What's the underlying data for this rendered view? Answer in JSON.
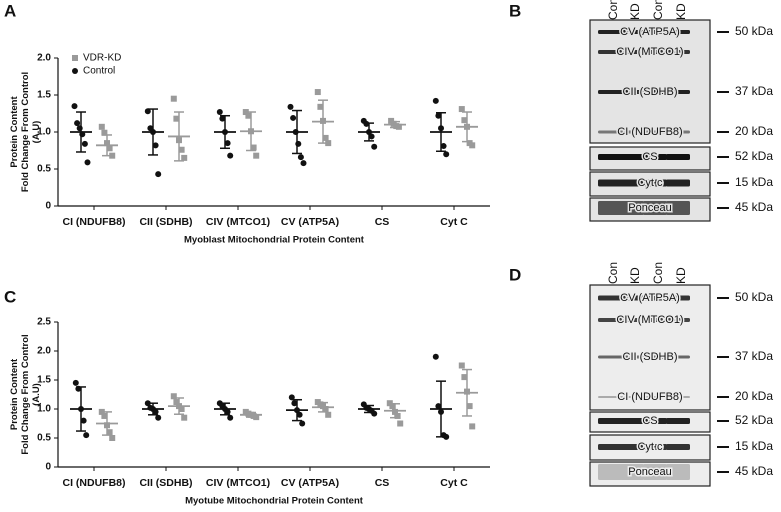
{
  "chart_data": [
    {
      "type": "dot_plot",
      "panel_label": "A",
      "ylabel": [
        "Protein Content",
        "Fold Change From Control",
        "(A.U)"
      ],
      "xlabel": "Myoblast Mitochondrial Protein Content",
      "categories": [
        "CI (NDUFB8)",
        "CII (SDHB)",
        "CIV (MTCO1)",
        "CV (ATP5A)",
        "CS",
        "Cyt C"
      ],
      "ylim": [
        0,
        2
      ],
      "yticks": [
        0,
        0.5,
        {
          "value": 1,
          "label": "1.0"
        },
        1.5,
        {
          "value": 2,
          "label": "2.0"
        }
      ],
      "legend": "top-left",
      "series": [
        {
          "name": "Control",
          "color": "#111111",
          "marker": "circle",
          "values": [
            [
              1.35,
              1.12,
              1.05,
              0.97,
              0.84,
              0.59
            ],
            [
              1.28,
              1.05,
              1.0,
              0.82,
              0.43
            ],
            [
              1.27,
              1.18,
              1.0,
              0.85,
              0.68
            ],
            [
              1.34,
              1.19,
              1.0,
              0.84,
              0.66,
              0.58
            ],
            [
              1.15,
              1.11,
              1.0,
              0.94,
              0.8
            ],
            [
              1.42,
              1.22,
              1.05,
              0.81,
              0.7
            ]
          ],
          "mean": [
            1.0,
            1.0,
            1.0,
            1.0,
            1.0,
            1.0
          ],
          "sd": [
            0.27,
            0.31,
            0.22,
            0.29,
            0.12,
            0.26
          ]
        },
        {
          "name": "VDR-KD",
          "color": "#9a9a9a",
          "marker": "square",
          "values": [
            [
              1.07,
              0.99,
              0.85,
              0.78,
              0.68
            ],
            [
              1.45,
              1.18,
              0.89,
              0.76,
              0.65
            ],
            [
              1.27,
              1.22,
              1.01,
              0.79,
              0.68
            ],
            [
              1.54,
              1.34,
              1.15,
              0.92,
              0.85
            ],
            [
              1.15,
              1.11,
              1.08,
              1.07
            ],
            [
              1.31,
              1.16,
              1.07,
              0.85,
              0.82
            ]
          ],
          "mean": [
            0.82,
            0.94,
            1.01,
            1.14,
            1.1,
            1.07
          ],
          "sd": [
            0.14,
            0.33,
            0.26,
            0.29,
            0.04,
            0.2
          ]
        }
      ]
    },
    {
      "type": "dot_plot",
      "panel_label": "C",
      "ylabel": [
        "Protein Content",
        "Fold Change From Control",
        "(A.U)"
      ],
      "xlabel": "Myotube Mitochondrial Protein Content",
      "categories": [
        "CI (NDUFB8)",
        "CII (SDHB)",
        "CIV (MTCO1)",
        "CV (ATP5A)",
        "CS",
        "Cyt C"
      ],
      "ylim": [
        0,
        2.5
      ],
      "yticks": [
        0,
        0.5,
        {
          "value": 1,
          "label": "1.0"
        },
        1.5,
        {
          "value": 2,
          "label": "2.0"
        },
        2.5
      ],
      "legend": null,
      "series": [
        {
          "color": "#111111",
          "marker": "circle",
          "values": [
            [
              1.45,
              1.35,
              1.0,
              0.8,
              0.55
            ],
            [
              1.1,
              1.02,
              1.0,
              0.95,
              0.85
            ],
            [
              1.1,
              1.05,
              1.0,
              0.95,
              0.85
            ],
            [
              1.2,
              1.1,
              0.98,
              0.9,
              0.75
            ],
            [
              1.08,
              1.02,
              1.0,
              0.97,
              0.92
            ],
            [
              1.9,
              1.05,
              0.95,
              0.55,
              0.52
            ]
          ],
          "mean": [
            1.0,
            1.0,
            1.0,
            0.98,
            1.0,
            1.0
          ],
          "sd": [
            0.38,
            0.1,
            0.1,
            0.18,
            0.06,
            0.48
          ]
        },
        {
          "color": "#9a9a9a",
          "marker": "square",
          "values": [
            [
              0.95,
              0.88,
              0.72,
              0.6,
              0.5
            ],
            [
              1.22,
              1.12,
              1.05,
              1.0,
              0.85
            ],
            [
              0.95,
              0.92,
              0.9,
              0.88,
              0.86
            ],
            [
              1.12,
              1.08,
              1.05,
              1.0,
              0.9
            ],
            [
              1.1,
              1.05,
              0.95,
              0.88,
              0.75
            ],
            [
              1.75,
              1.55,
              1.3,
              1.05,
              0.7
            ]
          ],
          "mean": [
            0.75,
            1.05,
            0.9,
            1.03,
            0.97,
            1.28
          ],
          "sd": [
            0.2,
            0.14,
            0.04,
            0.08,
            0.12,
            0.4
          ]
        }
      ]
    }
  ],
  "blots": [
    {
      "panel_label": "B",
      "columns": [
        "Con",
        "KD",
        "Con",
        "KD"
      ],
      "rows": [
        {
          "label": "CV (ATP5A)",
          "kda": "50 kDa"
        },
        {
          "label": "CIV (MTCO1)"
        },
        {
          "label": "CII (SDHB)",
          "kda": "37 kDa"
        },
        {
          "label": "CI (NDUFB8)",
          "kda": "20 kDa"
        },
        {
          "label": "CS",
          "kda": "52 kDa"
        },
        {
          "label": "Cyt c",
          "kda": "15 kDa"
        },
        {
          "label": "Ponceau",
          "kda": "45 kDa"
        }
      ]
    },
    {
      "panel_label": "D",
      "columns": [
        "Con",
        "KD",
        "Con",
        "KD"
      ],
      "rows": [
        {
          "label": "CV (ATP5A)",
          "kda": "50 kDa"
        },
        {
          "label": "CIV (MTCO1)"
        },
        {
          "label": "CII (SDHB)",
          "kda": "37 kDa"
        },
        {
          "label": "CI (NDUFB8)",
          "kda": "20 kDa"
        },
        {
          "label": "CS",
          "kda": "52 kDa"
        },
        {
          "label": "Cyt c",
          "kda": "15 kDa"
        },
        {
          "label": "Ponceau",
          "kda": "45 kDa"
        }
      ]
    }
  ]
}
